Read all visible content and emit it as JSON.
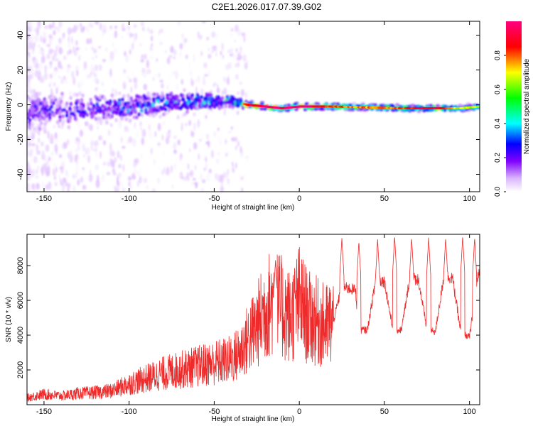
{
  "title": "C2E1.2026.017.07.39.G02",
  "chart_data": [
    {
      "type": "heatmap",
      "title": "",
      "xlabel": "Height of straight line (km)",
      "ylabel": "Frequency (Hz)",
      "xlim": [
        -160,
        106
      ],
      "ylim": [
        -50,
        48
      ],
      "x_ticks": [
        -150,
        -100,
        -50,
        0,
        50,
        100
      ],
      "y_ticks": [
        -40,
        -20,
        0,
        20,
        40
      ],
      "colorbar": {
        "label": "Normalized spectral amplitude",
        "range": [
          0,
          1
        ],
        "ticks": [
          0.0,
          0.2,
          0.4,
          0.6,
          0.8
        ],
        "colormap": [
          "#ffffff",
          "#d9b3ff",
          "#8000ff",
          "#0000ff",
          "#00ffff",
          "#00ff00",
          "#ffff00",
          "#ff0000",
          "#ff0080"
        ]
      },
      "ridge": [
        {
          "x": -160,
          "freq": -4,
          "spread": 10,
          "amp": 0.28
        },
        {
          "x": -140,
          "freq": -3,
          "spread": 9,
          "amp": 0.3
        },
        {
          "x": -120,
          "freq": -2,
          "spread": 8,
          "amp": 0.32
        },
        {
          "x": -100,
          "freq": -1,
          "spread": 7,
          "amp": 0.35
        },
        {
          "x": -80,
          "freq": 1,
          "spread": 6,
          "amp": 0.4
        },
        {
          "x": -60,
          "freq": 2,
          "spread": 5,
          "amp": 0.42
        },
        {
          "x": -40,
          "freq": 2,
          "spread": 3,
          "amp": 0.5
        },
        {
          "x": -30,
          "freq": 0,
          "spread": 2,
          "amp": 0.7
        },
        {
          "x": -20,
          "freq": -1,
          "spread": 1.5,
          "amp": 0.8
        },
        {
          "x": -10,
          "freq": -2,
          "spread": 1.5,
          "amp": 0.75
        },
        {
          "x": 0,
          "freq": -1,
          "spread": 1.5,
          "amp": 0.85
        },
        {
          "x": 10,
          "freq": -1,
          "spread": 1.5,
          "amp": 0.7
        },
        {
          "x": 20,
          "freq": -1,
          "spread": 1.5,
          "amp": 0.65
        },
        {
          "x": 40,
          "freq": -1.5,
          "spread": 1.5,
          "amp": 0.6
        },
        {
          "x": 60,
          "freq": -2,
          "spread": 1.5,
          "amp": 0.65
        },
        {
          "x": 80,
          "freq": -2,
          "spread": 1.5,
          "amp": 0.75
        },
        {
          "x": 95,
          "freq": -2,
          "spread": 1.5,
          "amp": 0.5
        },
        {
          "x": 106,
          "freq": -1,
          "spread": 1.5,
          "amp": 0.55
        }
      ]
    },
    {
      "type": "line",
      "title": "",
      "xlabel": "Height of straight line (km)",
      "ylabel": "SNR (10 * v/v)",
      "xlim": [
        -160,
        106
      ],
      "ylim": [
        0,
        9800
      ],
      "x_ticks": [
        -150,
        -100,
        -50,
        0,
        50,
        100
      ],
      "y_ticks": [
        2000,
        4000,
        6000,
        8000
      ],
      "color": "#ee2a2a",
      "series": [
        {
          "name": "SNR",
          "x": [
            -160,
            -150,
            -140,
            -130,
            -120,
            -110,
            -100,
            -90,
            -80,
            -70,
            -60,
            -50,
            -40,
            -35,
            -30,
            -25,
            -20,
            -15,
            -10,
            -5,
            0,
            5,
            10,
            15,
            20,
            25,
            28,
            33,
            35,
            40,
            45,
            50,
            55,
            60,
            65,
            70,
            75,
            80,
            85,
            90,
            95,
            100,
            105,
            106
          ],
          "y": [
            400,
            600,
            500,
            650,
            700,
            800,
            1200,
            1500,
            1800,
            2000,
            2200,
            2400,
            2600,
            3000,
            3800,
            4500,
            5500,
            6000,
            5500,
            5000,
            6000,
            5000,
            4800,
            4500,
            4800,
            6800,
            6700,
            6600,
            4300,
            4300,
            7200,
            7100,
            4300,
            4300,
            7300,
            7200,
            4300,
            4200,
            7400,
            7300,
            4100,
            3900,
            7400,
            7500
          ]
        }
      ],
      "peaks": [
        {
          "x": -14,
          "y": 8300
        },
        {
          "x": 25,
          "y": 9600
        },
        {
          "x": 35,
          "y": 9400
        },
        {
          "x": 46,
          "y": 9500
        },
        {
          "x": 56,
          "y": 9700
        },
        {
          "x": 66,
          "y": 9600
        },
        {
          "x": 76,
          "y": 9600
        },
        {
          "x": 86,
          "y": 9600
        },
        {
          "x": 96,
          "y": 9700
        },
        {
          "x": 103,
          "y": 9600
        }
      ]
    }
  ]
}
